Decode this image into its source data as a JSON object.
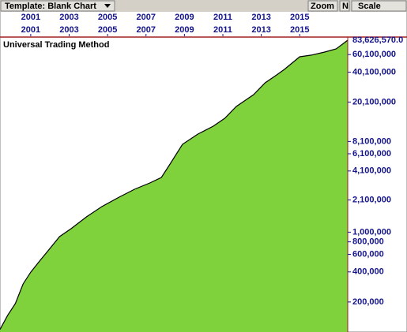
{
  "toolbar": {
    "template": "Template: Blank Chart",
    "zoom": "Zoom",
    "n": "N",
    "scale": "Scale"
  },
  "chart_data": {
    "type": "area",
    "title": "Universal Trading Method",
    "x": [
      1999.4,
      1999.8,
      2000.2,
      2000.6,
      2001.0,
      2001.5,
      2001.9,
      2002.5,
      2003.1,
      2003.9,
      2004.7,
      2005.6,
      2006.4,
      2007.2,
      2007.8,
      2008.2,
      2008.9,
      2009.7,
      2010.5,
      2011.1,
      2011.7,
      2012.6,
      2013.2,
      2013.8,
      2014.2,
      2014.6,
      2015.0,
      2015.6,
      2016.3,
      2016.9,
      2017.5
    ],
    "values": [
      106000,
      147000,
      192500,
      303000,
      398000,
      524000,
      651000,
      903000,
      1083000,
      1423000,
      1803000,
      2243000,
      2690000,
      3111000,
      3534000,
      4642000,
      7586000,
      9610000,
      11530000,
      13830000,
      18160000,
      23870000,
      31330000,
      37580000,
      42660000,
      49410000,
      57140000,
      59290000,
      63680000,
      68520000,
      83626570
    ],
    "value_labels": [
      null,
      null,
      null,
      null,
      null,
      null,
      null,
      null,
      null,
      null,
      null,
      null,
      null,
      null,
      null,
      null,
      null,
      null,
      null,
      null,
      null,
      null,
      null,
      null,
      null,
      null,
      null,
      null,
      null,
      null,
      "83,626,570.0"
    ],
    "color": "#80d23c",
    "line_color": "#000000",
    "xlim": [
      1999.4,
      2017.5
    ],
    "xticks": [
      2001,
      2003,
      2005,
      2007,
      2009,
      2011,
      2013,
      2015
    ],
    "ylim": [
      100000,
      90000000
    ],
    "log_scale": true,
    "grid": false,
    "yticks": [
      {
        "value": 200000,
        "label": "200,000"
      },
      {
        "value": 400000,
        "label": "400,000"
      },
      {
        "value": 600000,
        "label": "600,000"
      },
      {
        "value": 800000,
        "label": "800,000"
      },
      {
        "value": 1000000,
        "label": "1,000,000"
      },
      {
        "value": 2100000,
        "label": "2,100,000"
      },
      {
        "value": 4100000,
        "label": "4,100,000"
      },
      {
        "value": 6100000,
        "label": "6,100,000"
      },
      {
        "value": 8100000,
        "label": "8,100,000"
      },
      {
        "value": 20100000,
        "label": "20,100,000"
      },
      {
        "value": 40100000,
        "label": "40,100,000"
      },
      {
        "value": 60100000,
        "label": "60,100,000"
      }
    ]
  }
}
